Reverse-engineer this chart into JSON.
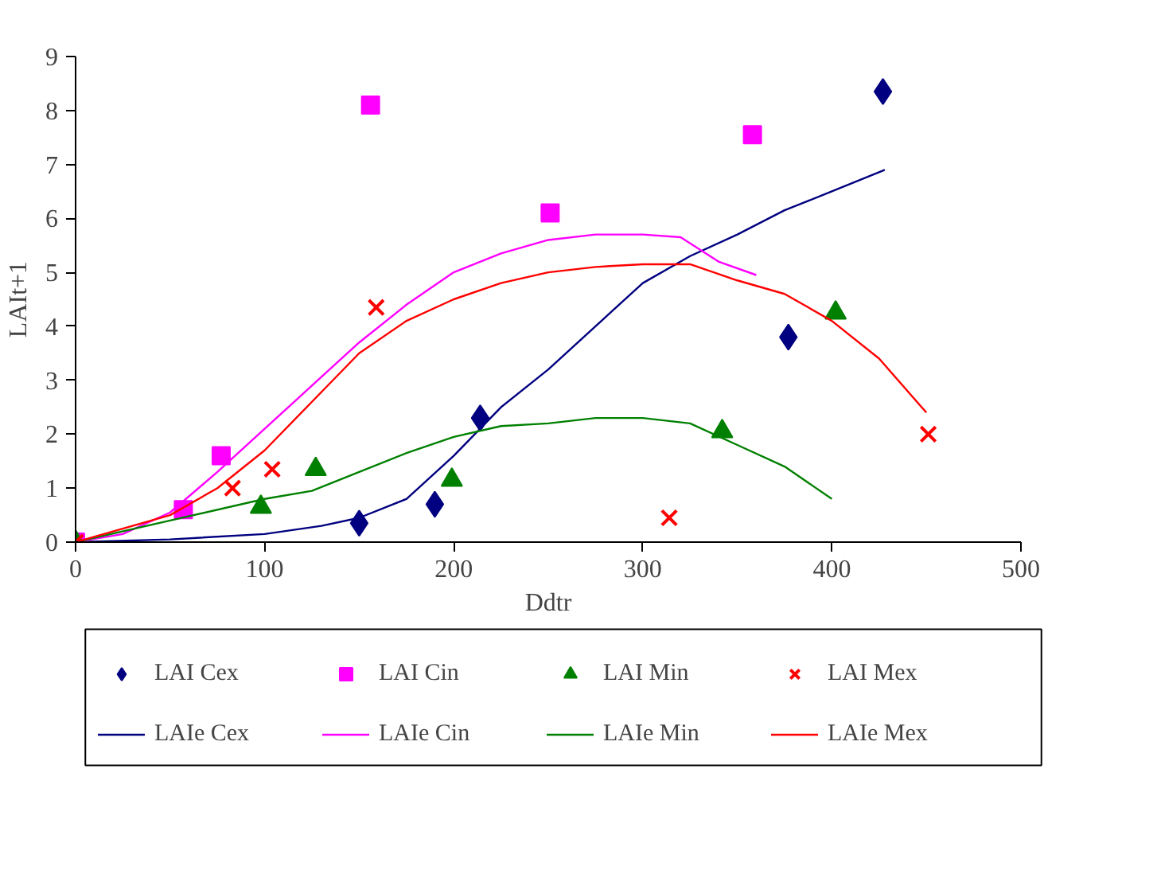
{
  "chart_data": {
    "type": "scatter",
    "xlabel": "Ddtr",
    "ylabel": "LAIt+1",
    "xlim": [
      0,
      500
    ],
    "xticks": [
      0,
      100,
      200,
      300,
      400,
      500
    ],
    "ylim": [
      0,
      9
    ],
    "yticks": [
      0,
      1,
      2,
      3,
      4,
      5,
      6,
      7,
      8,
      9
    ],
    "grid": false,
    "legend": "bottom",
    "series": [
      {
        "name": "LAI Cex",
        "marker": "diamond",
        "color": "#000080",
        "x": [
          150,
          190,
          214,
          377,
          427
        ],
        "values": [
          0.35,
          0.7,
          2.3,
          3.8,
          8.35
        ]
      },
      {
        "name": "LAI Cin",
        "marker": "square",
        "color": "#ff00ff",
        "x": [
          0,
          57,
          77,
          156,
          251,
          358
        ],
        "values": [
          0,
          0.6,
          1.6,
          8.1,
          6.1,
          7.55
        ]
      },
      {
        "name": "LAI Min",
        "marker": "triangle",
        "color": "#008000",
        "x": [
          0,
          98,
          127,
          199,
          342,
          402
        ],
        "values": [
          0,
          0.65,
          1.35,
          1.15,
          2.05,
          4.25
        ]
      },
      {
        "name": "LAI Mex",
        "marker": "cross",
        "color": "#ff0000",
        "x": [
          0,
          83,
          104,
          159,
          314,
          451
        ],
        "values": [
          0,
          1.0,
          1.35,
          4.35,
          0.45,
          2.0
        ]
      },
      {
        "name": "LAIe Cex",
        "type": "line",
        "marker": "none",
        "color": "#000080",
        "x": [
          0,
          50,
          100,
          130,
          150,
          175,
          200,
          225,
          250,
          275,
          300,
          325,
          350,
          375,
          400,
          428
        ],
        "values": [
          0,
          0.05,
          0.15,
          0.3,
          0.45,
          0.8,
          1.6,
          2.5,
          3.2,
          4.0,
          4.8,
          5.3,
          5.7,
          6.15,
          6.5,
          6.9
        ]
      },
      {
        "name": "LAIe Cin",
        "type": "line",
        "marker": "none",
        "color": "#ff00ff",
        "x": [
          0,
          25,
          50,
          75,
          100,
          125,
          150,
          175,
          200,
          225,
          250,
          275,
          300,
          320,
          340,
          360
        ],
        "values": [
          0,
          0.15,
          0.55,
          1.3,
          2.1,
          2.9,
          3.7,
          4.4,
          5.0,
          5.35,
          5.6,
          5.7,
          5.7,
          5.65,
          5.2,
          4.95
        ]
      },
      {
        "name": "LAIe Min",
        "type": "line",
        "marker": "none",
        "color": "#008000",
        "x": [
          0,
          50,
          100,
          125,
          150,
          175,
          200,
          225,
          250,
          275,
          300,
          325,
          350,
          375,
          400
        ],
        "values": [
          0,
          0.4,
          0.8,
          0.95,
          1.3,
          1.65,
          1.95,
          2.15,
          2.2,
          2.3,
          2.3,
          2.2,
          1.8,
          1.4,
          0.8
        ]
      },
      {
        "name": "LAIe Mex",
        "type": "line",
        "marker": "none",
        "color": "#ff0000",
        "x": [
          0,
          50,
          75,
          100,
          125,
          150,
          175,
          200,
          225,
          250,
          275,
          300,
          325,
          350,
          375,
          400,
          425,
          450
        ],
        "values": [
          0,
          0.5,
          1.0,
          1.7,
          2.6,
          3.5,
          4.1,
          4.5,
          4.8,
          5.0,
          5.1,
          5.15,
          5.15,
          4.85,
          4.6,
          4.1,
          3.4,
          2.4
        ]
      }
    ]
  }
}
